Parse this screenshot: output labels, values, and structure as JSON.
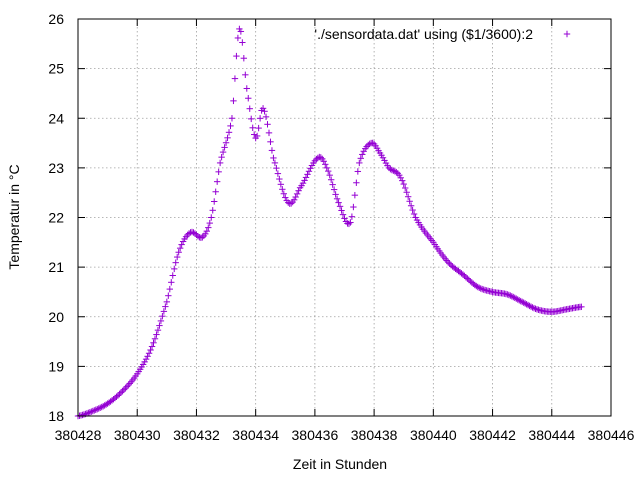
{
  "chart_data": {
    "type": "scatter",
    "title": "",
    "xlabel": "Zeit in Stunden",
    "ylabel": "Temperatur in °C",
    "xlim": [
      380428,
      380446
    ],
    "ylim": [
      18,
      26
    ],
    "xticks": [
      380428,
      380430,
      380432,
      380434,
      380436,
      380438,
      380440,
      380442,
      380444,
      380446
    ],
    "yticks": [
      18,
      19,
      20,
      21,
      22,
      23,
      24,
      25,
      26
    ],
    "grid": true,
    "legend_position": "top-right",
    "marker": "plus",
    "series": [
      {
        "name": "'./sensordata.dat' using ($1/3600):2",
        "color": "#9400d3",
        "x": [
          380428.0,
          380428.5,
          380429.0,
          380429.5,
          380430.0,
          380430.5,
          380431.0,
          380431.4,
          380431.8,
          380432.2,
          380432.5,
          380432.8,
          380433.2,
          380433.45,
          380433.7,
          380434.0,
          380434.25,
          380434.6,
          380435.1,
          380435.5,
          380436.1,
          380436.4,
          380436.8,
          380437.2,
          380437.5,
          380437.9,
          380438.2,
          380438.5,
          380438.9,
          380439.4,
          380440.0,
          380440.5,
          380441.0,
          380441.5,
          380442.0,
          380442.5,
          380443.0,
          380443.5,
          380444.0,
          380444.5,
          380445.0
        ],
        "y": [
          18.0,
          18.1,
          18.25,
          18.5,
          18.85,
          19.4,
          20.3,
          21.3,
          21.7,
          21.6,
          22.0,
          23.1,
          24.0,
          25.8,
          24.6,
          23.6,
          24.2,
          23.2,
          22.3,
          22.6,
          23.2,
          23.0,
          22.3,
          21.9,
          23.1,
          23.5,
          23.3,
          23.0,
          22.8,
          22.0,
          21.5,
          21.1,
          20.85,
          20.6,
          20.5,
          20.45,
          20.3,
          20.15,
          20.1,
          20.15,
          20.2
        ]
      }
    ]
  }
}
